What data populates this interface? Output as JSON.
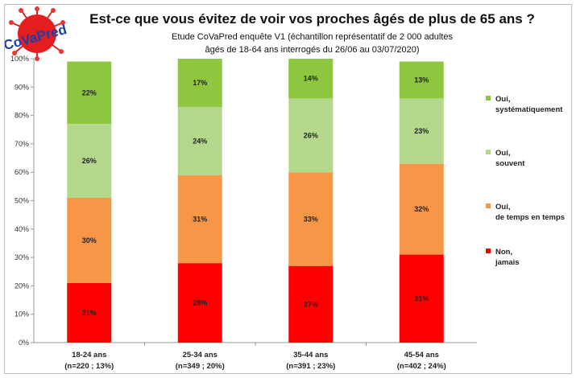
{
  "title": "Est-ce que vous évitez de voir vos proches âgés de plus de 65 ans ?",
  "subtitle_1": "Etude CoVaPred enquête V1 (échantillon représentatif de 2 000 adultes",
  "subtitle_2": "âgés de 18-64 ans interrogés du 26/06 au 03/07/2020)",
  "logo_text": "CoVaPred",
  "chart_data": {
    "type": "bar",
    "stacked": true,
    "categories": [
      [
        "18-24 ans",
        "(n=220 ; 13%)"
      ],
      [
        "25-34 ans",
        "(n=349 ; 20%)"
      ],
      [
        "35-44 ans",
        "(n=391 ; 23%)"
      ],
      [
        "45-54 ans",
        "(n=402 ; 24%)"
      ]
    ],
    "series": [
      {
        "name": [
          "Non,",
          "jamais"
        ],
        "color": "#ff0000",
        "values": [
          21,
          28,
          27,
          31
        ]
      },
      {
        "name": [
          "Oui,",
          "de temps en temps"
        ],
        "color": "#f79646",
        "values": [
          30,
          31,
          33,
          32
        ]
      },
      {
        "name": [
          "Oui,",
          "souvent"
        ],
        "color": "#b3d88c",
        "values": [
          26,
          24,
          26,
          23
        ]
      },
      {
        "name": [
          "Oui,",
          "systématiquement"
        ],
        "color": "#8dc63f",
        "values": [
          22,
          17,
          14,
          13
        ]
      }
    ],
    "ylim": [
      0,
      100
    ],
    "yticks": [
      "0%",
      "10%",
      "20%",
      "30%",
      "40%",
      "50%",
      "60%",
      "70%",
      "80%",
      "90%",
      "100%"
    ],
    "grid": false,
    "legend": "right"
  }
}
